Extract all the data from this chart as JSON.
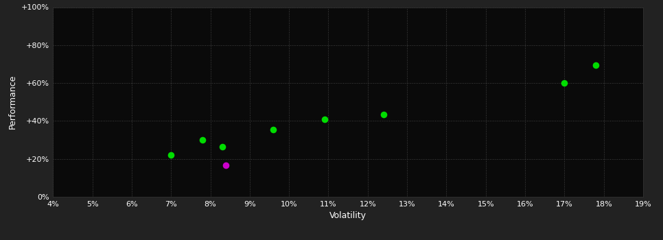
{
  "title": "",
  "xlabel": "Volatility",
  "ylabel": "Performance",
  "background_color": "#222222",
  "plot_background_color": "#0a0a0a",
  "grid_color": "#444444",
  "text_color": "#ffffff",
  "xlim": [
    0.04,
    0.19
  ],
  "ylim": [
    0.0,
    1.0
  ],
  "xticks": [
    0.04,
    0.05,
    0.06,
    0.07,
    0.08,
    0.09,
    0.1,
    0.11,
    0.12,
    0.13,
    0.14,
    0.15,
    0.16,
    0.17,
    0.18,
    0.19
  ],
  "yticks": [
    0.0,
    0.2,
    0.4,
    0.6,
    0.8,
    1.0
  ],
  "ytick_labels": [
    "0%",
    "+20%",
    "+40%",
    "+60%",
    "+80%",
    "+100%"
  ],
  "green_points": [
    [
      0.07,
      0.22
    ],
    [
      0.078,
      0.3
    ],
    [
      0.083,
      0.265
    ],
    [
      0.096,
      0.355
    ],
    [
      0.109,
      0.41
    ],
    [
      0.124,
      0.435
    ],
    [
      0.17,
      0.6
    ],
    [
      0.178,
      0.695
    ]
  ],
  "magenta_points": [
    [
      0.084,
      0.165
    ]
  ],
  "dot_size": 35,
  "green_color": "#00dd00",
  "magenta_color": "#cc00cc"
}
